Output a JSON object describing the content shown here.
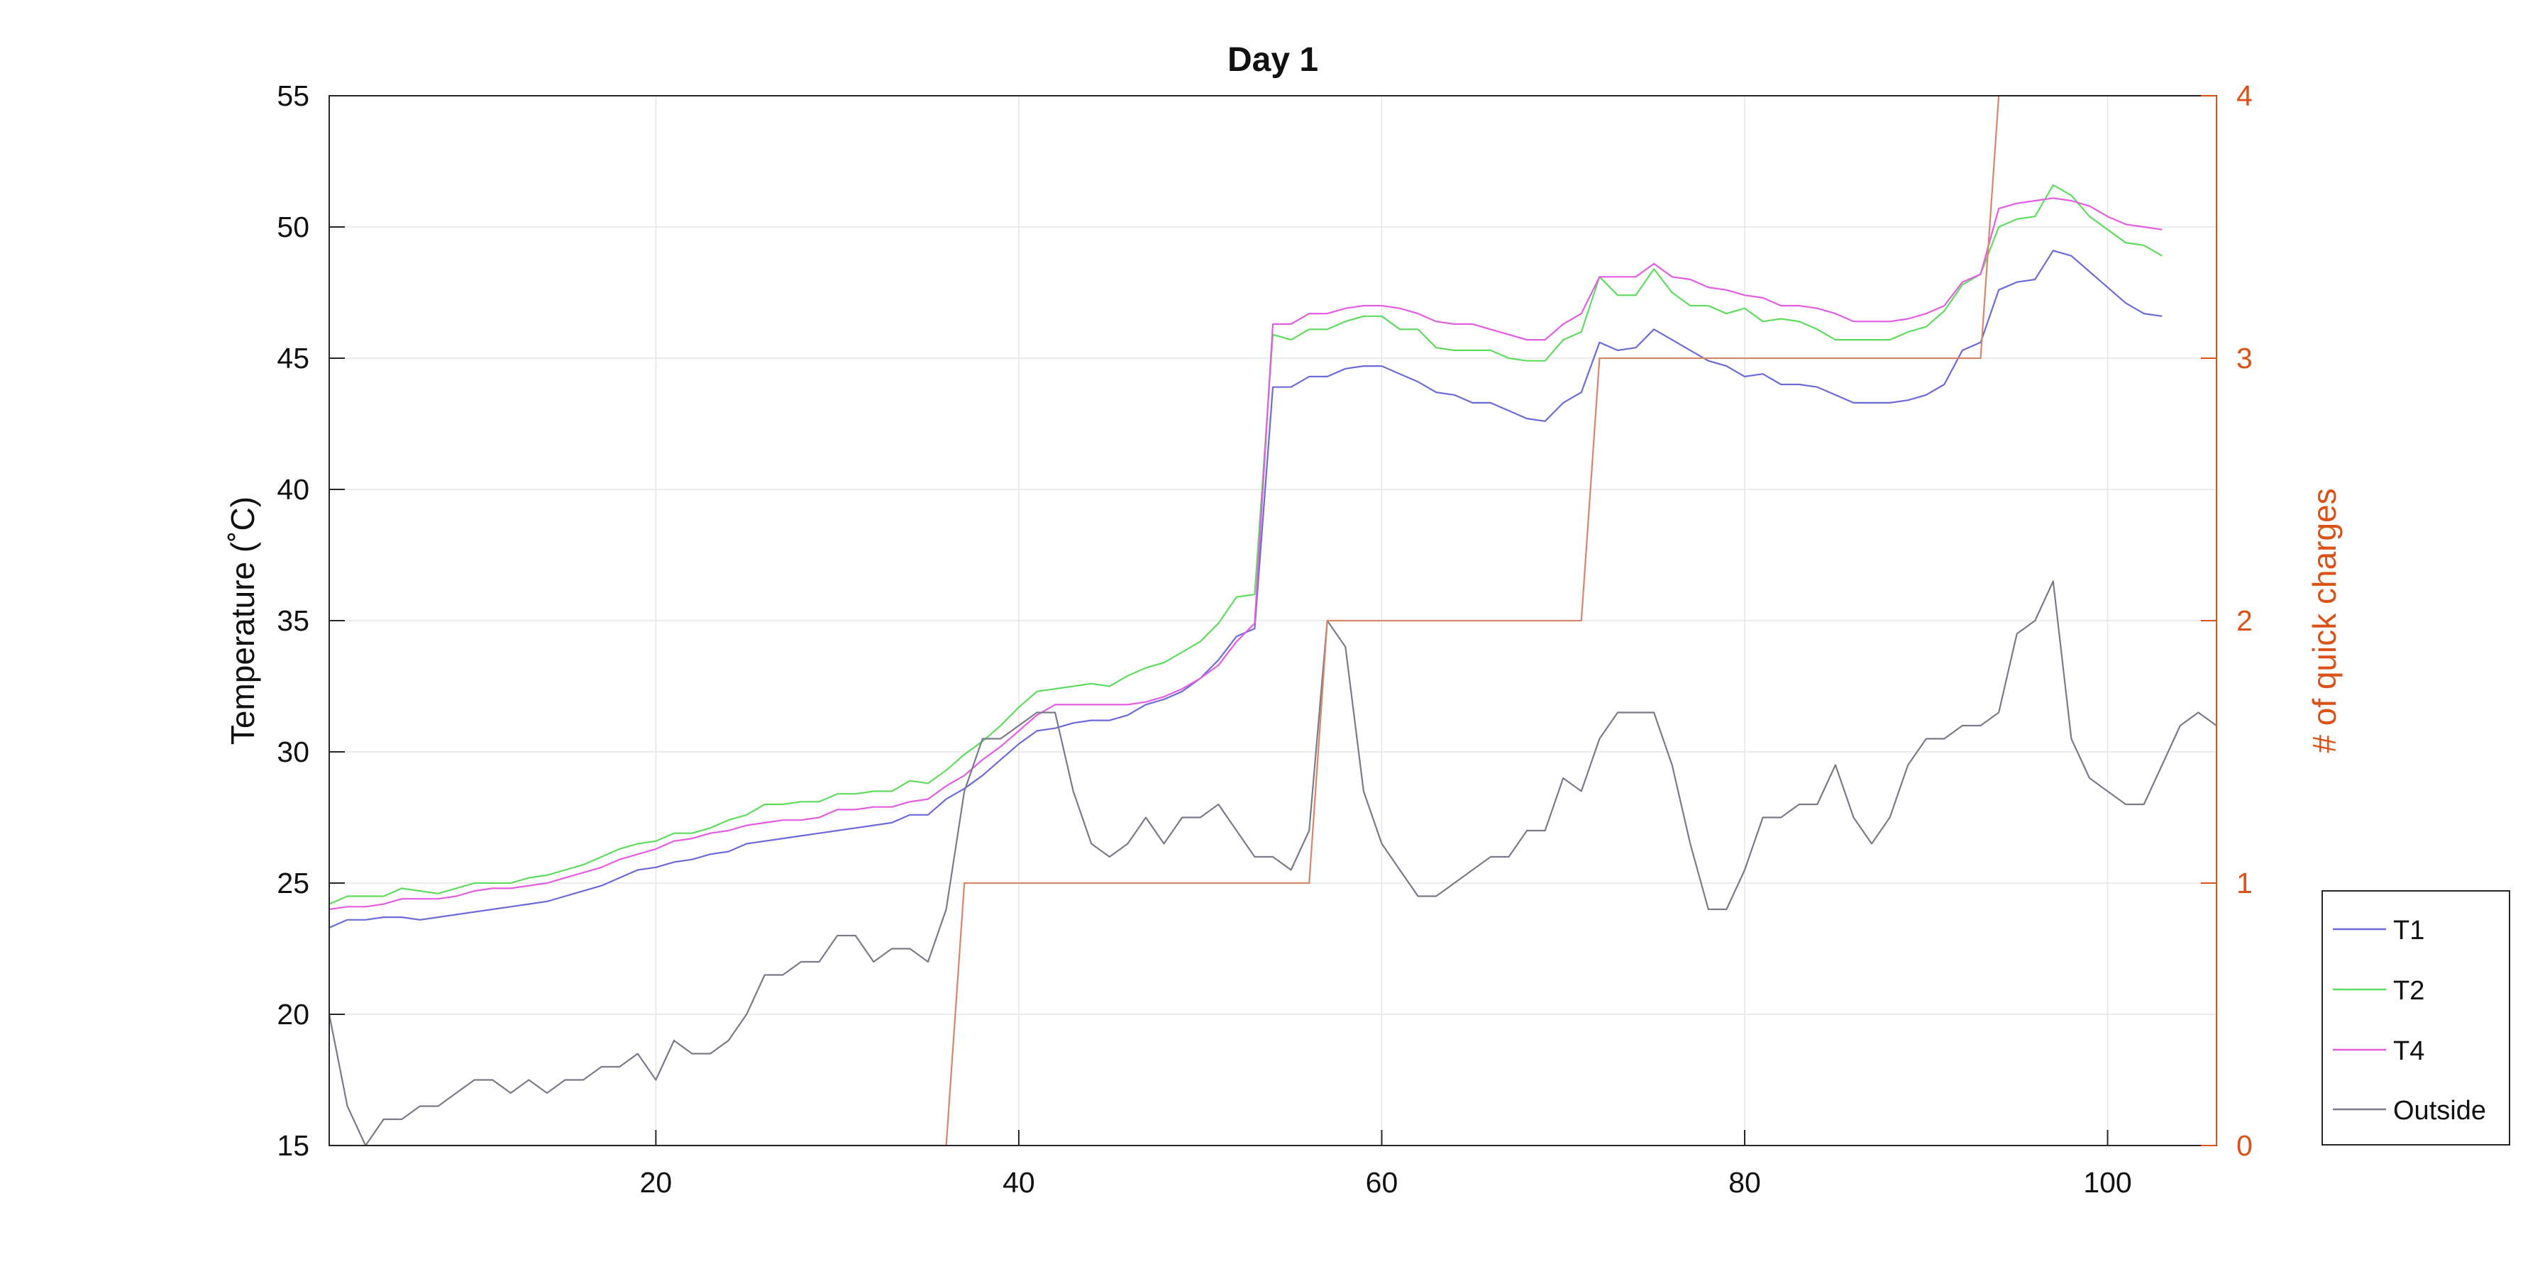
{
  "chart_data": {
    "type": "line",
    "title": "Day 1",
    "xlabel": "",
    "ylabel": "Temperature (˚C)",
    "ylabel_right": "# of quick charges",
    "xlim": [
      2,
      106
    ],
    "ylim": [
      15,
      55
    ],
    "ylim_right": [
      0,
      4
    ],
    "x_ticks": [
      "20",
      "40",
      "60",
      "80",
      "100"
    ],
    "y_ticks": [
      "15",
      "20",
      "25",
      "30",
      "35",
      "40",
      "45",
      "50",
      "55"
    ],
    "y_ticks_right": [
      "0",
      "1",
      "2",
      "3",
      "4"
    ],
    "grid": true,
    "legend_position": "bottom-right outside",
    "x_start": 2,
    "series": [
      {
        "name": "T1",
        "axis": "left",
        "color": "#6b6bd8",
        "values": [
          23.3,
          23.6,
          23.6,
          23.7,
          23.7,
          23.6,
          23.7,
          23.8,
          23.9,
          24.0,
          24.1,
          24.2,
          24.3,
          24.5,
          24.7,
          24.9,
          25.2,
          25.5,
          25.6,
          25.8,
          25.9,
          26.1,
          26.2,
          26.5,
          26.6,
          26.7,
          26.8,
          26.9,
          27.0,
          27.1,
          27.2,
          27.3,
          27.6,
          27.6,
          28.2,
          28.6,
          29.1,
          29.7,
          30.3,
          30.8,
          30.9,
          31.1,
          31.2,
          31.2,
          31.4,
          31.8,
          32.0,
          32.3,
          32.8,
          33.5,
          34.4,
          34.7,
          43.9,
          43.9,
          44.3,
          44.3,
          44.6,
          44.7,
          44.7,
          44.4,
          44.1,
          43.7,
          43.6,
          43.3,
          43.3,
          43.0,
          42.7,
          42.6,
          43.3,
          43.7,
          45.6,
          45.3,
          45.4,
          46.1,
          45.7,
          45.3,
          44.9,
          44.7,
          44.3,
          44.4,
          44.0,
          44.0,
          43.9,
          43.6,
          43.3,
          43.3,
          43.3,
          43.4,
          43.6,
          44.0,
          45.3,
          45.6,
          47.6,
          47.9,
          48.0,
          49.1,
          48.9,
          48.3,
          47.7,
          47.1,
          46.7,
          46.6
        ]
      },
      {
        "name": "T2",
        "axis": "left",
        "color": "#5fdc5f",
        "values": [
          24.2,
          24.5,
          24.5,
          24.5,
          24.8,
          24.7,
          24.6,
          24.8,
          25.0,
          25.0,
          25.0,
          25.2,
          25.3,
          25.5,
          25.7,
          26.0,
          26.3,
          26.5,
          26.6,
          26.9,
          26.9,
          27.1,
          27.4,
          27.6,
          28.0,
          28.0,
          28.1,
          28.1,
          28.4,
          28.4,
          28.5,
          28.5,
          28.9,
          28.8,
          29.3,
          29.9,
          30.4,
          31.0,
          31.7,
          32.3,
          32.4,
          32.5,
          32.6,
          32.5,
          32.9,
          33.2,
          33.4,
          33.8,
          34.2,
          34.9,
          35.9,
          36.0,
          45.9,
          45.7,
          46.1,
          46.1,
          46.4,
          46.6,
          46.6,
          46.1,
          46.1,
          45.4,
          45.3,
          45.3,
          45.3,
          45.0,
          44.9,
          44.9,
          45.7,
          46.0,
          48.1,
          47.4,
          47.4,
          48.4,
          47.5,
          47.0,
          47.0,
          46.7,
          46.9,
          46.4,
          46.5,
          46.4,
          46.1,
          45.7,
          45.7,
          45.7,
          45.7,
          46.0,
          46.2,
          46.8,
          47.8,
          48.2,
          50.0,
          50.3,
          50.4,
          51.6,
          51.2,
          50.4,
          49.9,
          49.4,
          49.3,
          48.9
        ]
      },
      {
        "name": "T4",
        "axis": "left",
        "color": "#e35de3",
        "values": [
          24.0,
          24.1,
          24.1,
          24.2,
          24.4,
          24.4,
          24.4,
          24.5,
          24.7,
          24.8,
          24.8,
          24.9,
          25.0,
          25.2,
          25.4,
          25.6,
          25.9,
          26.1,
          26.3,
          26.6,
          26.7,
          26.9,
          27.0,
          27.2,
          27.3,
          27.4,
          27.4,
          27.5,
          27.8,
          27.8,
          27.9,
          27.9,
          28.1,
          28.2,
          28.7,
          29.1,
          29.7,
          30.2,
          30.8,
          31.4,
          31.8,
          31.8,
          31.8,
          31.8,
          31.8,
          31.9,
          32.1,
          32.4,
          32.8,
          33.3,
          34.2,
          34.9,
          46.3,
          46.3,
          46.7,
          46.7,
          46.9,
          47.0,
          47.0,
          46.9,
          46.7,
          46.4,
          46.3,
          46.3,
          46.1,
          45.9,
          45.7,
          45.7,
          46.3,
          46.7,
          48.1,
          48.1,
          48.1,
          48.6,
          48.1,
          48.0,
          47.7,
          47.6,
          47.4,
          47.3,
          47.0,
          47.0,
          46.9,
          46.7,
          46.4,
          46.4,
          46.4,
          46.5,
          46.7,
          47.0,
          47.9,
          48.2,
          50.7,
          50.9,
          51.0,
          51.1,
          51.0,
          50.8,
          50.4,
          50.1,
          50.0,
          49.9
        ]
      },
      {
        "name": "Outside",
        "axis": "left",
        "color": "#7a7a8a",
        "values": [
          20.0,
          16.5,
          15.0,
          16.0,
          16.0,
          16.5,
          16.5,
          17.0,
          17.5,
          17.5,
          17.0,
          17.5,
          17.0,
          17.5,
          17.5,
          18.0,
          18.0,
          18.5,
          17.5,
          19.0,
          18.5,
          18.5,
          19.0,
          20.0,
          21.5,
          21.5,
          22.0,
          22.0,
          23.0,
          23.0,
          22.0,
          22.5,
          22.5,
          22.0,
          24.0,
          28.5,
          30.5,
          30.5,
          31.0,
          31.5,
          31.5,
          28.5,
          26.5,
          26.0,
          26.5,
          27.5,
          26.5,
          27.5,
          27.5,
          28.0,
          27.0,
          26.0,
          26.0,
          25.5,
          27.0,
          35.0,
          34.0,
          28.5,
          26.5,
          25.5,
          24.5,
          24.5,
          25.0,
          25.5,
          26.0,
          26.0,
          27.0,
          27.0,
          29.0,
          28.5,
          30.5,
          31.5,
          31.5,
          31.5,
          29.5,
          26.5,
          24.0,
          24.0,
          25.5,
          27.5,
          27.5,
          28.0,
          28.0,
          29.5,
          27.5,
          26.5,
          27.5,
          29.5,
          30.5,
          30.5,
          31.0,
          31.0,
          31.5,
          34.5,
          35.0,
          36.5,
          30.5,
          29.0,
          28.5,
          28.0,
          28.0,
          29.5,
          31.0,
          31.5,
          31.0
        ]
      },
      {
        "name": "",
        "axis": "right",
        "color": "#d4876a",
        "step_points": [
          [
            2,
            0
          ],
          [
            36,
            0
          ],
          [
            37,
            1
          ],
          [
            56,
            1
          ],
          [
            57,
            2
          ],
          [
            71,
            2
          ],
          [
            72,
            3
          ],
          [
            93,
            3
          ],
          [
            94,
            4
          ],
          [
            106,
            4
          ]
        ]
      }
    ],
    "legend": [
      "T1",
      "T2",
      "T4",
      "Outside"
    ]
  }
}
